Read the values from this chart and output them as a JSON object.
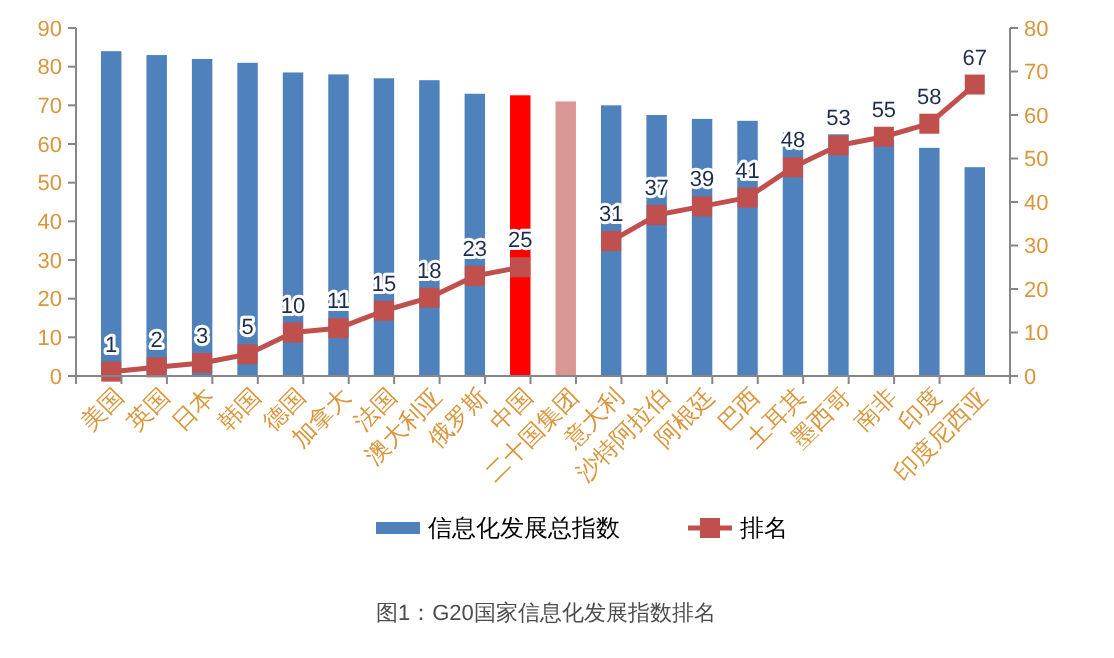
{
  "chart_data": {
    "type": "bar",
    "categories": [
      "美国",
      "英国",
      "日本",
      "韩国",
      "德国",
      "加拿大",
      "法国",
      "澳大利亚",
      "俄罗斯",
      "中国",
      "二十国集团",
      "意大利",
      "沙特阿拉伯",
      "阿根廷",
      "巴西",
      "土耳其",
      "墨西哥",
      "南非",
      "印度",
      "印度尼西亚"
    ],
    "series": [
      {
        "name": "信息化发展总指数",
        "color": "#4f81bd",
        "colors": [
          "#4f81bd",
          "#4f81bd",
          "#4f81bd",
          "#4f81bd",
          "#4f81bd",
          "#4f81bd",
          "#4f81bd",
          "#4f81bd",
          "#4f81bd",
          "#ff0000",
          "#d99694",
          "#4f81bd",
          "#4f81bd",
          "#4f81bd",
          "#4f81bd",
          "#4f81bd",
          "#4f81bd",
          "#4f81bd",
          "#4f81bd",
          "#4f81bd"
        ],
        "values": [
          84,
          83,
          82,
          81,
          78.5,
          78,
          77,
          76.5,
          73,
          72.6,
          71,
          70,
          67.5,
          66.5,
          66,
          63,
          62.5,
          61,
          59,
          54
        ]
      },
      {
        "name": "排名",
        "type": "line",
        "axis": "y2",
        "color": "#c0504d",
        "marker": "square",
        "values": [
          1,
          2,
          3,
          5,
          10,
          11,
          15,
          18,
          23,
          25,
          null,
          31,
          37,
          39,
          41,
          48,
          53,
          55,
          58,
          67
        ],
        "value_labels": [
          "1",
          "2",
          "3",
          "5",
          "10",
          "11",
          "15",
          "18",
          "23",
          "25",
          null,
          "31",
          "37",
          "39",
          "41",
          "48",
          "53",
          "55",
          "58",
          "67"
        ]
      }
    ],
    "ylim": [
      0,
      90
    ],
    "yticks": [
      0,
      10,
      20,
      30,
      40,
      50,
      60,
      70,
      80,
      90
    ],
    "y2lim": [
      0,
      80
    ],
    "y2ticks": [
      0,
      10,
      20,
      30,
      40,
      50,
      60,
      70,
      80
    ],
    "grid": false,
    "legend": "bottom",
    "annotations": [
      "图1：G20国家信息化发展指数排名"
    ]
  }
}
